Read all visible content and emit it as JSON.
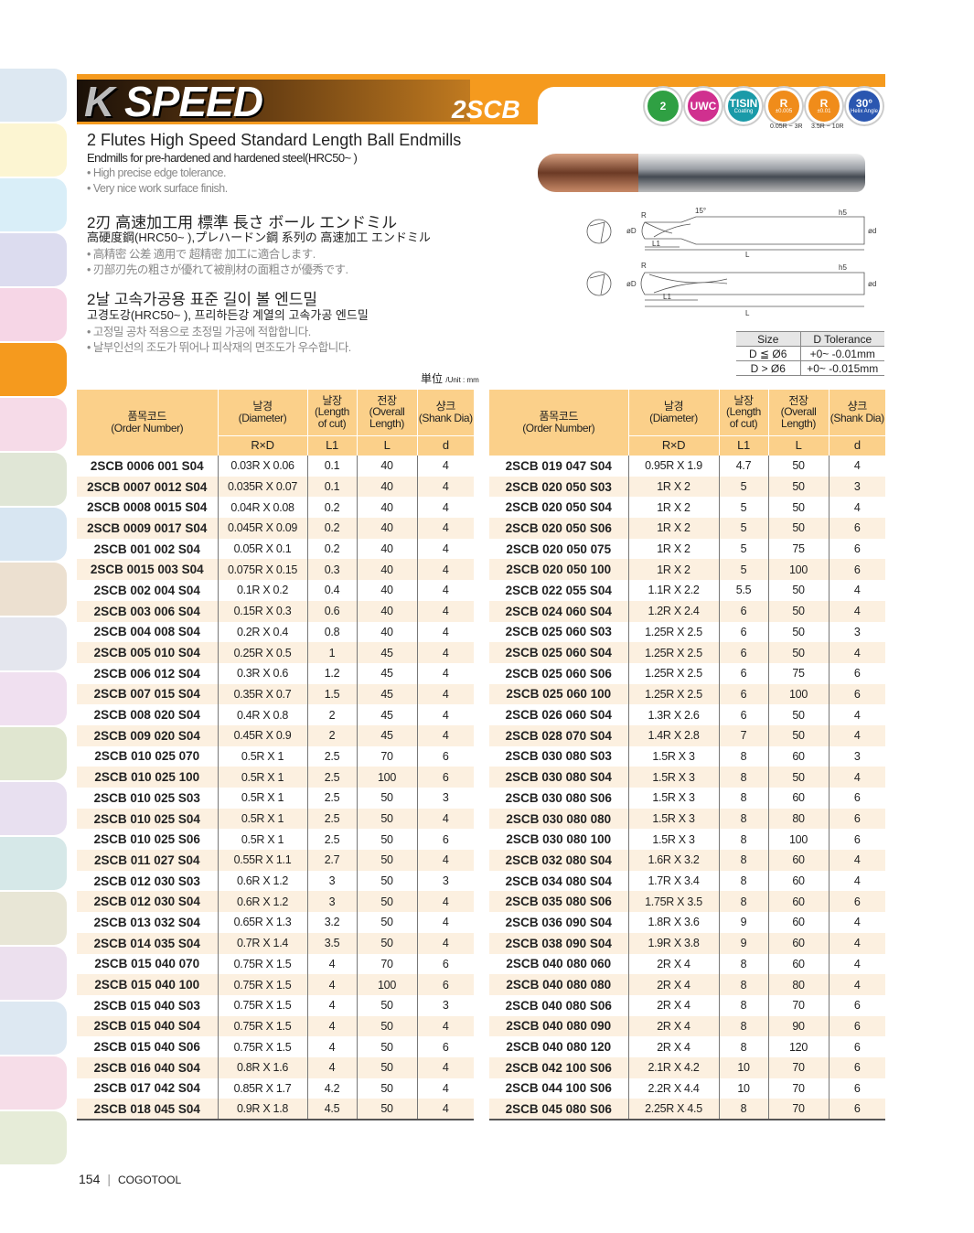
{
  "sidebar": {
    "tab_colors": [
      "#dde8f2",
      "#fcf5d2",
      "#d9eef8",
      "#dcdcef",
      "#f6d6e6",
      "#f59a1e",
      "#f6dbe8",
      "#e0e6d6",
      "#d8e6f2",
      "#ece0d0",
      "#e4e6ee",
      "#f0e0f0",
      "#e0e6d0",
      "#e8e0f0",
      "#d6e8e8",
      "#e8e6d6",
      "#ece0ee",
      "#dde8f2",
      "#f6dde8",
      "#e6ecd8"
    ]
  },
  "header": {
    "logo": "K SPEED",
    "series": "2SCB",
    "icons": [
      {
        "name": "flutes-icon",
        "label": "2",
        "sub": "",
        "color": "#2fa043"
      },
      {
        "name": "uwc-icon",
        "label": "UWC",
        "sub": "",
        "color": "#d0308f"
      },
      {
        "name": "tisin-coating-icon",
        "label": "TISIN",
        "sub": "Coating",
        "color": "#1a9aa8"
      },
      {
        "name": "radius-tolerance-icon",
        "label": "R",
        "sub": "±0.005",
        "color": "#f08c1a"
      },
      {
        "name": "radius-tolerance-icon",
        "label": "R",
        "sub": "±0.01",
        "color": "#f08c1a"
      },
      {
        "name": "helix-angle-icon",
        "label": "30°",
        "sub": "Helix Angle",
        "color": "#2a56b0"
      }
    ],
    "captions": [
      "0.05R ~ 3R",
      "3.5R ~ 10R"
    ]
  },
  "intro": {
    "en_title": "2 Flutes High Speed Standard Length Ball Endmills",
    "en_sub": "Endmills for pre-hardened and hardened steel(HRC50~ )",
    "en_bullets": [
      "• High precise edge tolerance.",
      "• Very nice work surface finish."
    ],
    "jp_title": "2刃 高速加工用 標準 長さ ボール エンドミル",
    "jp_sub": "高硬度鋼(HRC50~ ),プレハードン鋼 系列の 高速加工 エンドミル",
    "jp_bullets": [
      "• 高精密 公差 適用で 超精密 加工に適合します.",
      "• 刃部刃先の粗さが優れて被削材の面粗さが優秀です."
    ],
    "kr_title": "2날 고속가공용 표준 길이 볼 엔드밀",
    "kr_sub": "고경도강(HRC50~ ), 프리하든강 계열의 고속가공 엔드밀",
    "kr_bullets": [
      "• 고정밀 공차 적용으로 초정밀 가공에 적합합니다.",
      "• 날부인선의 조도가 뛰어나 피삭재의 면조도가 우수합니다."
    ]
  },
  "diagram": {
    "labels": {
      "r": "R",
      "angle": "15°",
      "h5": "h5",
      "dD": "øD",
      "dd": "ød",
      "l1": "L1",
      "l": "L"
    }
  },
  "tolerance": {
    "headers": [
      "Size",
      "D Tolerance"
    ],
    "rows": [
      [
        "D ≦ Ø6",
        "+0~ -0.01mm"
      ],
      [
        "D > Ø6",
        "+0~ -0.015mm"
      ]
    ]
  },
  "unit": {
    "main": "単位",
    "sub": "/Unit : mm"
  },
  "table": {
    "headers": [
      [
        "품목코드",
        "(Order Number)"
      ],
      [
        "날경",
        "(Diameter)"
      ],
      [
        "날장",
        "(Length",
        "of cut)"
      ],
      [
        "전장",
        "(Overall",
        "Length)"
      ],
      [
        "샹크",
        "(Shank Dia)"
      ]
    ],
    "subheaders": [
      "R×D",
      "L1",
      "L",
      "d"
    ],
    "left": [
      [
        "2SCB 0006 001 S04",
        "0.03R X 0.06",
        "0.1",
        "40",
        "4"
      ],
      [
        "2SCB 0007 0012 S04",
        "0.035R X 0.07",
        "0.1",
        "40",
        "4"
      ],
      [
        "2SCB 0008 0015 S04",
        "0.04R X 0.08",
        "0.2",
        "40",
        "4"
      ],
      [
        "2SCB 0009 0017 S04",
        "0.045R X 0.09",
        "0.2",
        "40",
        "4"
      ],
      [
        "2SCB 001 002 S04",
        "0.05R X 0.1",
        "0.2",
        "40",
        "4"
      ],
      [
        "2SCB 0015 003 S04",
        "0.075R X 0.15",
        "0.3",
        "40",
        "4"
      ],
      [
        "2SCB 002 004 S04",
        "0.1R X 0.2",
        "0.4",
        "40",
        "4"
      ],
      [
        "2SCB 003 006 S04",
        "0.15R X 0.3",
        "0.6",
        "40",
        "4"
      ],
      [
        "2SCB 004 008 S04",
        "0.2R X 0.4",
        "0.8",
        "40",
        "4"
      ],
      [
        "2SCB 005 010 S04",
        "0.25R X 0.5",
        "1",
        "45",
        "4"
      ],
      [
        "2SCB 006 012 S04",
        "0.3R X 0.6",
        "1.2",
        "45",
        "4"
      ],
      [
        "2SCB 007 015 S04",
        "0.35R X 0.7",
        "1.5",
        "45",
        "4"
      ],
      [
        "2SCB 008 020 S04",
        "0.4R X 0.8",
        "2",
        "45",
        "4"
      ],
      [
        "2SCB 009 020 S04",
        "0.45R X 0.9",
        "2",
        "45",
        "4"
      ],
      [
        "2SCB 010 025 070",
        "0.5R X 1",
        "2.5",
        "70",
        "6"
      ],
      [
        "2SCB 010 025 100",
        "0.5R X 1",
        "2.5",
        "100",
        "6"
      ],
      [
        "2SCB 010 025 S03",
        "0.5R X 1",
        "2.5",
        "50",
        "3"
      ],
      [
        "2SCB 010 025 S04",
        "0.5R X 1",
        "2.5",
        "50",
        "4"
      ],
      [
        "2SCB 010 025 S06",
        "0.5R X 1",
        "2.5",
        "50",
        "6"
      ],
      [
        "2SCB 011 027 S04",
        "0.55R X 1.1",
        "2.7",
        "50",
        "4"
      ],
      [
        "2SCB 012 030 S03",
        "0.6R X 1.2",
        "3",
        "50",
        "3"
      ],
      [
        "2SCB 012 030 S04",
        "0.6R X 1.2",
        "3",
        "50",
        "4"
      ],
      [
        "2SCB 013 032 S04",
        "0.65R X 1.3",
        "3.2",
        "50",
        "4"
      ],
      [
        "2SCB 014 035 S04",
        "0.7R X 1.4",
        "3.5",
        "50",
        "4"
      ],
      [
        "2SCB 015 040 070",
        "0.75R X 1.5",
        "4",
        "70",
        "6"
      ],
      [
        "2SCB 015 040 100",
        "0.75R X 1.5",
        "4",
        "100",
        "6"
      ],
      [
        "2SCB 015 040 S03",
        "0.75R X 1.5",
        "4",
        "50",
        "3"
      ],
      [
        "2SCB 015 040 S04",
        "0.75R X 1.5",
        "4",
        "50",
        "4"
      ],
      [
        "2SCB 015 040 S06",
        "0.75R X 1.5",
        "4",
        "50",
        "6"
      ],
      [
        "2SCB 016 040 S04",
        "0.8R X 1.6",
        "4",
        "50",
        "4"
      ],
      [
        "2SCB 017 042 S04",
        "0.85R X 1.7",
        "4.2",
        "50",
        "4"
      ],
      [
        "2SCB 018 045 S04",
        "0.9R X 1.8",
        "4.5",
        "50",
        "4"
      ]
    ],
    "right": [
      [
        "2SCB 019 047 S04",
        "0.95R X 1.9",
        "4.7",
        "50",
        "4"
      ],
      [
        "2SCB 020 050 S03",
        "1R X 2",
        "5",
        "50",
        "3"
      ],
      [
        "2SCB 020 050 S04",
        "1R X 2",
        "5",
        "50",
        "4"
      ],
      [
        "2SCB 020 050 S06",
        "1R X 2",
        "5",
        "50",
        "6"
      ],
      [
        "2SCB 020 050 075",
        "1R X 2",
        "5",
        "75",
        "6"
      ],
      [
        "2SCB 020 050 100",
        "1R X 2",
        "5",
        "100",
        "6"
      ],
      [
        "2SCB 022 055 S04",
        "1.1R X 2.2",
        "5.5",
        "50",
        "4"
      ],
      [
        "2SCB 024 060 S04",
        "1.2R X 2.4",
        "6",
        "50",
        "4"
      ],
      [
        "2SCB 025 060 S03",
        "1.25R X 2.5",
        "6",
        "50",
        "3"
      ],
      [
        "2SCB 025 060 S04",
        "1.25R X 2.5",
        "6",
        "50",
        "4"
      ],
      [
        "2SCB 025 060 S06",
        "1.25R X 2.5",
        "6",
        "75",
        "6"
      ],
      [
        "2SCB 025 060 100",
        "1.25R X 2.5",
        "6",
        "100",
        "6"
      ],
      [
        "2SCB 026 060 S04",
        "1.3R X 2.6",
        "6",
        "50",
        "4"
      ],
      [
        "2SCB 028 070 S04",
        "1.4R X 2.8",
        "7",
        "50",
        "4"
      ],
      [
        "2SCB 030 080 S03",
        "1.5R X 3",
        "8",
        "60",
        "3"
      ],
      [
        "2SCB 030 080 S04",
        "1.5R X 3",
        "8",
        "50",
        "4"
      ],
      [
        "2SCB 030 080 S06",
        "1.5R X 3",
        "8",
        "60",
        "6"
      ],
      [
        "2SCB 030 080 080",
        "1.5R X 3",
        "8",
        "80",
        "6"
      ],
      [
        "2SCB 030 080 100",
        "1.5R X 3",
        "8",
        "100",
        "6"
      ],
      [
        "2SCB 032 080 S04",
        "1.6R X 3.2",
        "8",
        "60",
        "4"
      ],
      [
        "2SCB 034 080 S04",
        "1.7R X 3.4",
        "8",
        "60",
        "4"
      ],
      [
        "2SCB 035 080 S06",
        "1.75R X 3.5",
        "8",
        "60",
        "6"
      ],
      [
        "2SCB 036 090 S04",
        "1.8R X 3.6",
        "9",
        "60",
        "4"
      ],
      [
        "2SCB 038 090 S04",
        "1.9R X 3.8",
        "9",
        "60",
        "4"
      ],
      [
        "2SCB 040 080 060",
        "2R X 4",
        "8",
        "60",
        "4"
      ],
      [
        "2SCB 040 080 080",
        "2R X 4",
        "8",
        "80",
        "4"
      ],
      [
        "2SCB 040 080 S06",
        "2R X 4",
        "8",
        "70",
        "6"
      ],
      [
        "2SCB 040 080 090",
        "2R X 4",
        "8",
        "90",
        "6"
      ],
      [
        "2SCB 040 080 120",
        "2R X 4",
        "8",
        "120",
        "6"
      ],
      [
        "2SCB 042 100 S06",
        "2.1R X 4.2",
        "10",
        "70",
        "6"
      ],
      [
        "2SCB 044 100 S06",
        "2.2R X 4.4",
        "10",
        "70",
        "6"
      ],
      [
        "2SCB 045 080 S06",
        "2.25R X 4.5",
        "8",
        "70",
        "6"
      ]
    ]
  },
  "footer": {
    "page": "154",
    "brand": "COGOTOOL"
  }
}
